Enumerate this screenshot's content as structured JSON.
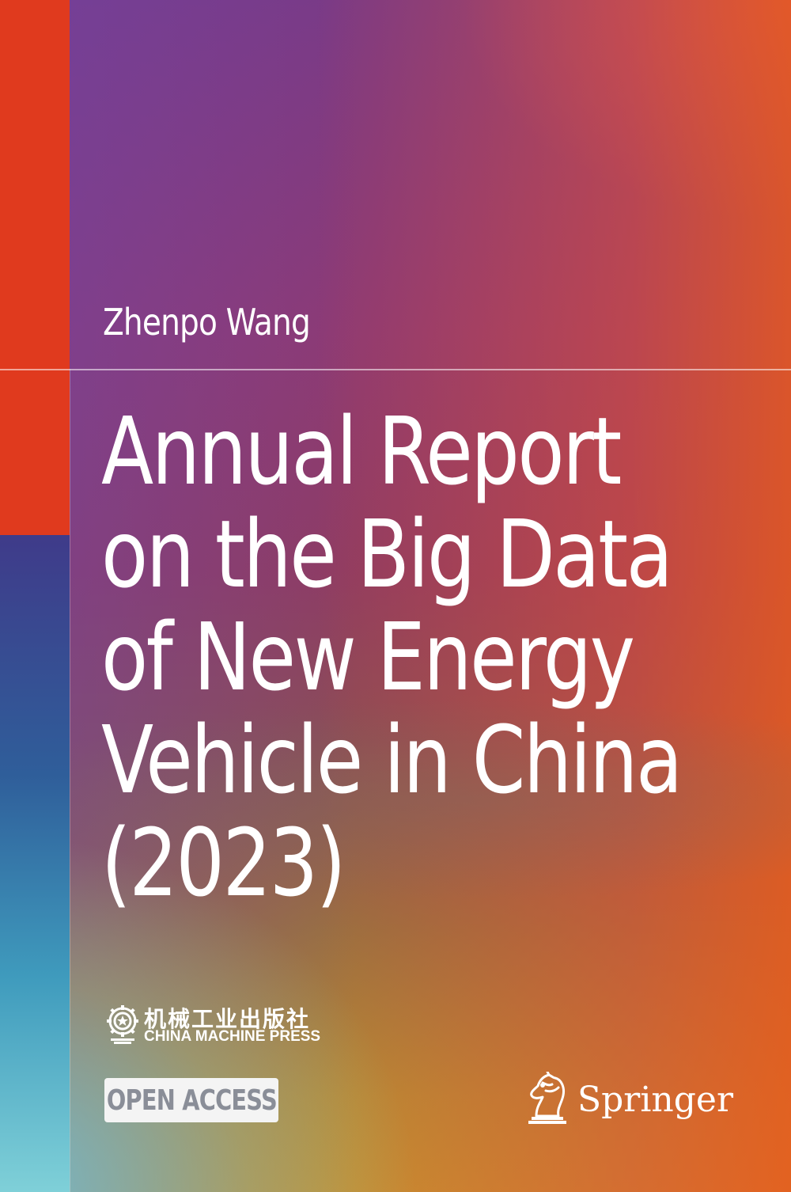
{
  "book": {
    "author": "Zhenpo Wang",
    "title_lines": [
      "Annual Report",
      "on the Big Data",
      "of New Energy",
      "Vehicle in China",
      "(2023)"
    ]
  },
  "publisher": {
    "name_cn": "机械工业出版社",
    "name_en": "CHINA MACHINE PRESS"
  },
  "badge": {
    "label": "OPEN ACCESS"
  },
  "imprint": {
    "name": "Springer"
  },
  "colors": {
    "accent_red": "#e03a1e",
    "badge_text": "#8a8e98",
    "badge_bg": "#f4f4f4",
    "text": "#ffffff"
  },
  "icons": {
    "publisher_logo": "gear-emblem-icon",
    "imprint_logo": "chess-knight-horse-icon"
  }
}
